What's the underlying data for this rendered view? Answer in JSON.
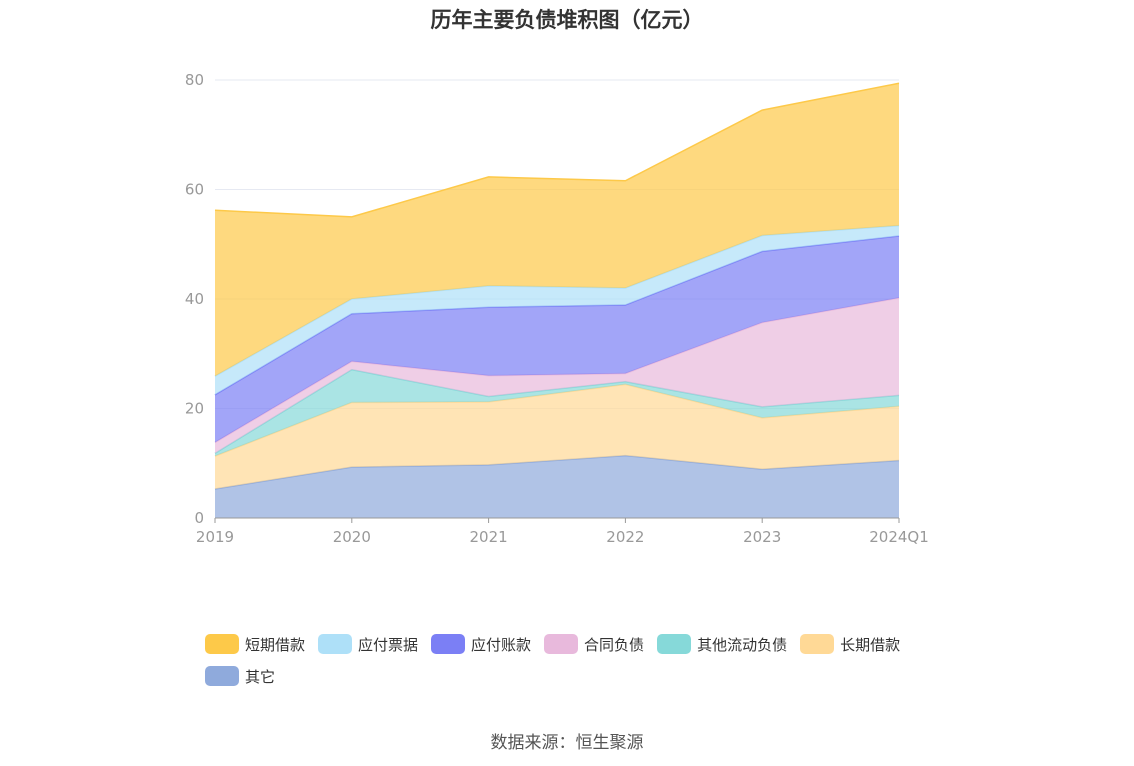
{
  "chart_data": {
    "type": "area",
    "stacked": true,
    "title": "历年主要负债堆积图（亿元）",
    "categories": [
      "2019",
      "2020",
      "2021",
      "2022",
      "2023",
      "2024Q1"
    ],
    "ylim": [
      0,
      80
    ],
    "yticks": [
      0,
      20,
      40,
      60,
      80
    ],
    "grid": true,
    "legend_position": "bottom",
    "series": [
      {
        "name": "其它",
        "color": "#8faadc",
        "values": [
          5.3,
          9.3,
          9.7,
          11.4,
          8.9,
          10.5
        ]
      },
      {
        "name": "长期借款",
        "color": "#ffd996",
        "values": [
          6.0,
          11.8,
          11.5,
          13.0,
          9.4,
          9.9
        ]
      },
      {
        "name": "其他流动负债",
        "color": "#86d9d9",
        "values": [
          0.5,
          6.0,
          1.0,
          0.5,
          2.0,
          2.0
        ]
      },
      {
        "name": "合同负债",
        "color": "#e8b9dc",
        "values": [
          2.0,
          1.5,
          3.8,
          1.5,
          15.4,
          17.8
        ]
      },
      {
        "name": "应付账款",
        "color": "#7b7ff5",
        "values": [
          8.7,
          8.7,
          12.5,
          12.5,
          13.0,
          11.3
        ]
      },
      {
        "name": "应付票据",
        "color": "#aee0f8",
        "values": [
          3.4,
          2.7,
          3.9,
          3.1,
          2.9,
          1.9
        ]
      },
      {
        "name": "短期借款",
        "color": "#fdc949",
        "values": [
          30.3,
          15.0,
          19.9,
          19.6,
          22.9,
          26.0
        ]
      }
    ],
    "legend_order": [
      "短期借款",
      "应付票据",
      "应付账款",
      "合同负债",
      "其他流动负债",
      "长期借款",
      "其它"
    ]
  },
  "source_text": "数据来源：恒生聚源"
}
